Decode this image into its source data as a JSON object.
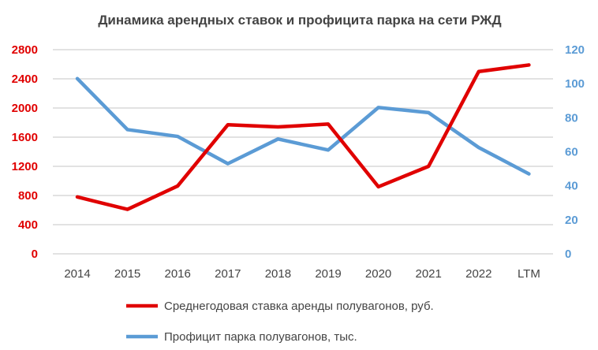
{
  "chart_data": {
    "type": "line",
    "title": "Динамика арендных ставок и профицита парка на сети РЖД",
    "categories": [
      "2014",
      "2015",
      "2016",
      "2017",
      "2018",
      "2019",
      "2020",
      "2021",
      "2022",
      "LTM"
    ],
    "y_left": {
      "range": [
        0,
        2800
      ],
      "ticks": [
        "0",
        "400",
        "800",
        "1200",
        "1600",
        "2000",
        "2400",
        "2800"
      ],
      "color": "#e00000"
    },
    "y_right": {
      "range": [
        0,
        120
      ],
      "ticks": [
        "0",
        "20",
        "40",
        "60",
        "80",
        "100",
        "120"
      ],
      "color": "#5b9bd5"
    },
    "grid": true,
    "legend_placement": "bottom",
    "series": [
      {
        "name": "Среднегодовая ставка аренды полувагонов, руб.",
        "axis": "left",
        "color": "#e00000",
        "values": [
          780,
          610,
          930,
          1770,
          1740,
          1780,
          920,
          1200,
          2500,
          2590
        ]
      },
      {
        "name": "Профицит парка полувагонов, тыс.",
        "axis": "right",
        "color": "#5b9bd5",
        "values": [
          103,
          73,
          69,
          53,
          67.5,
          61,
          86,
          83,
          62.5,
          47
        ]
      }
    ]
  }
}
